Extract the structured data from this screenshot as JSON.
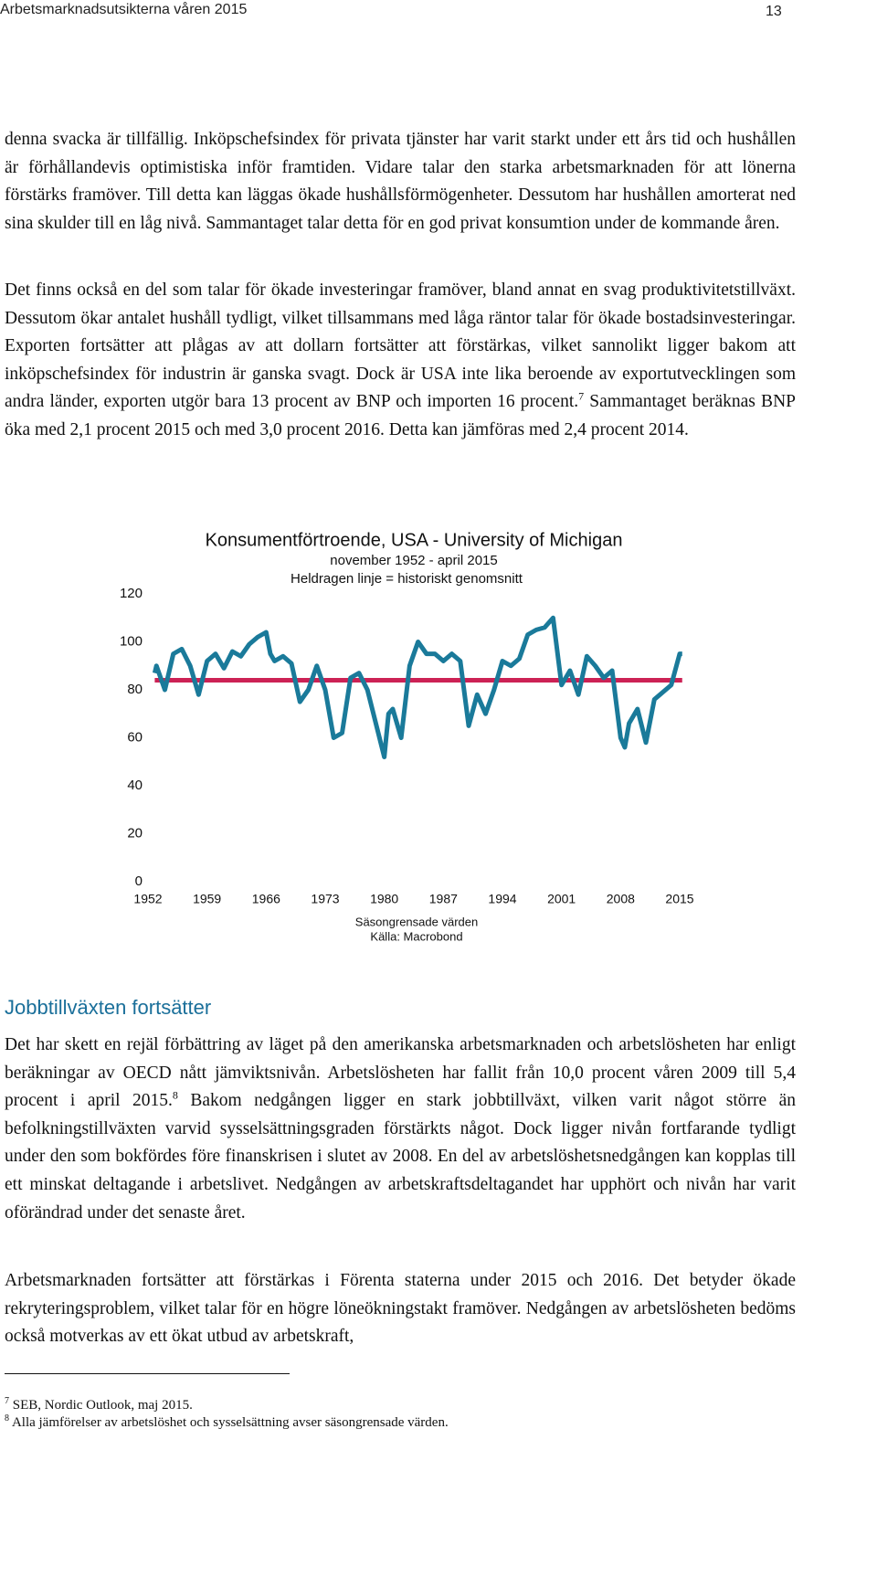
{
  "header": {
    "title": "Arbetsmarknadsutsikterna våren 2015",
    "page": "13"
  },
  "paragraphs": [
    [
      "denna svacka är tillfällig. Inköpschefsindex för privata tjänster har varit starkt under ett års tid och hushållen är förhållandevis optimistiska inför framtiden. Vidare talar den starka arbetsmarknaden för att lönerna förstärks framöver. Till detta kan läggas ökade hushållsförmögenheter. Dessutom har hushållen amorterat ned sina skulder till en låg nivå. Sammantaget talar detta för en god privat konsumtion under de kommande åren."
    ],
    [
      "Det finns också en del som talar för ökade investeringar framöver, bland annat en svag produktivitetstillväxt. Dessutom ökar antalet hushåll tydligt, vilket tillsammans med låga räntor talar för ökade bostadsinvesteringar. Exporten fortsätter att plågas av att dollarn fortsätter att förstärkas, vilket sannolikt ligger bakom att inköpschefsindex för industrin är ganska svagt. Dock är USA inte lika beroende av exportutvecklingen som andra länder, exporten utgör bara 13 procent av BNP och importen 16 procent.",
      "7",
      " Sammantaget beräknas BNP öka med 2,1 procent 2015 och med 3,0 procent 2016. Detta kan jämföras med 2,4 procent 2014."
    ]
  ],
  "chart_data": {
    "type": "line",
    "title": "Konsumentförtroende, USA - University of Michigan",
    "subtitle": "november 1952 - april 2015",
    "annotation": "Heldragen linje = historiskt genomsnitt",
    "note": "Säsongrensade värden",
    "source": "Källa: Macrobond",
    "x": [
      1952.8,
      1953,
      1953.5,
      1954,
      1955,
      1956,
      1957,
      1958,
      1959,
      1960,
      1961,
      1962,
      1963,
      1964,
      1965,
      1966,
      1966.5,
      1967,
      1968,
      1969,
      1970,
      1971,
      1972,
      1973,
      1974,
      1975,
      1976,
      1977,
      1978,
      1979,
      1980,
      1980.5,
      1981,
      1982,
      1983,
      1984,
      1985,
      1986,
      1987,
      1988,
      1989,
      1990,
      1991,
      1992,
      1993,
      1994,
      1995,
      1996,
      1997,
      1998,
      1999,
      2000,
      2001,
      2002,
      2003,
      2004,
      2005,
      2006,
      2007,
      2008,
      2008.5,
      2009,
      2010,
      2011,
      2012,
      2013,
      2014,
      2015,
      2015.3
    ],
    "series": [
      {
        "color": "#1a7a9a",
        "values": [
          87,
          90,
          85,
          80,
          95,
          97,
          90,
          78,
          92,
          95,
          89,
          96,
          94,
          99,
          102,
          104,
          95,
          92,
          94,
          91,
          75,
          80,
          90,
          80,
          60,
          62,
          85,
          87,
          80,
          66,
          52,
          70,
          72,
          60,
          90,
          100,
          95,
          95,
          92,
          95,
          92,
          65,
          78,
          70,
          80,
          92,
          90,
          93,
          103,
          105,
          106,
          110,
          82,
          88,
          78,
          94,
          90,
          85,
          88,
          60,
          56,
          66,
          72,
          58,
          76,
          79,
          82,
          95,
          95
        ]
      },
      {
        "color": "#cc2255",
        "values": [
          84,
          84,
          84,
          84,
          84,
          84,
          84,
          84,
          84,
          84,
          84,
          84,
          84,
          84,
          84,
          84,
          84,
          84,
          84,
          84,
          84,
          84,
          84,
          84,
          84,
          84,
          84,
          84,
          84,
          84,
          84,
          84,
          84,
          84,
          84,
          84,
          84,
          84,
          84,
          84,
          84,
          84,
          84,
          84,
          84,
          84,
          84,
          84,
          84,
          84,
          84,
          84,
          84,
          84,
          84,
          84,
          84,
          84,
          84,
          84,
          84,
          84,
          84,
          84,
          84,
          84,
          84,
          84,
          84
        ]
      }
    ],
    "xlim": [
      1952,
      2015
    ],
    "xticks": [
      1952,
      1959,
      1966,
      1973,
      1980,
      1987,
      1994,
      2001,
      2008,
      2015
    ],
    "ylim": [
      0,
      120
    ],
    "yticks": [
      0,
      20,
      40,
      60,
      80,
      100,
      120
    ]
  },
  "section": {
    "heading": "Jobbtillväxten fortsätter",
    "paragraphs": [
      [
        "Det har skett en rejäl förbättring av läget på den amerikanska arbetsmarknaden och arbetslösheten har enligt beräkningar av OECD nått jämviktsnivån. Arbetslösheten har fallit från 10,0 procent våren 2009 till 5,4 procent i april 2015.",
        "8",
        " Bakom nedgången ligger en stark jobbtillväxt, vilken varit något större än befolkningstillväxten varvid sysselsättningsgraden förstärkts något. Dock ligger nivån fortfarande tydligt under den som bokfördes före finanskrisen i slutet av 2008. En del av arbetslöshetsnedgången kan kopplas till ett minskat deltagande i arbetslivet. Nedgången av arbetskraftsdeltagandet har upphört och nivån har varit oförändrad under det senaste året."
      ],
      [
        "Arbetsmarknaden fortsätter att förstärkas i Förenta staterna under 2015 och 2016. Det betyder ökade rekryteringsproblem, vilket talar för en högre löneökningstakt framöver. Nedgången av arbetslösheten bedöms också motverkas av ett ökat utbud av arbetskraft,"
      ]
    ]
  },
  "footnotes": [
    {
      "mark": "7",
      "text": "SEB, Nordic Outlook, maj 2015."
    },
    {
      "mark": "8",
      "text": "Alla jämförelser av arbetslöshet och sysselsättning avser säsongrensade värden."
    }
  ]
}
